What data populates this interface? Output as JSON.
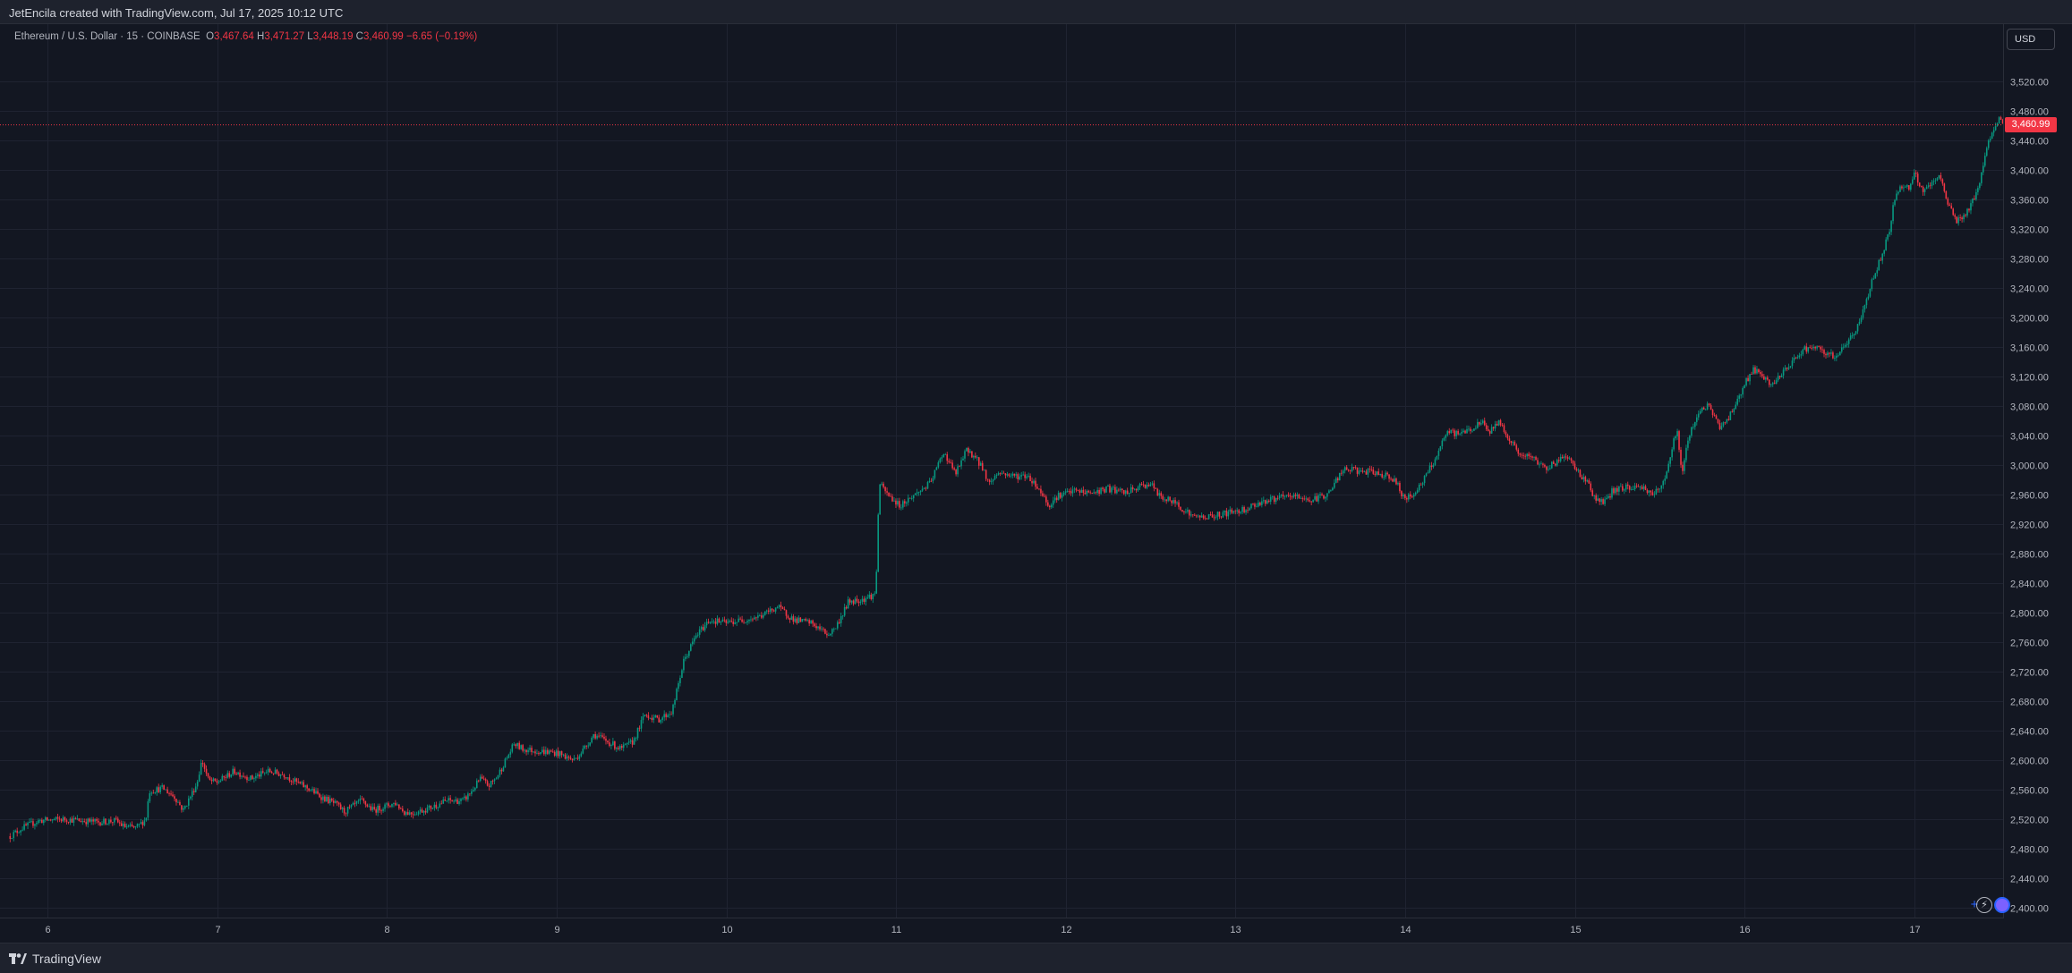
{
  "header": {
    "attribution": "JetEncila created with TradingView.com, Jul 17, 2025 10:12 UTC"
  },
  "legend": {
    "symbol": "Ethereum / U.S. Dollar · 15 · COINBASE",
    "open_label": "O",
    "open": "3,467.64",
    "high_label": "H",
    "high": "3,471.27",
    "low_label": "L",
    "low": "3,448.19",
    "close_label": "C",
    "close": "3,460.99",
    "change": "−6.65 (−0.19%)"
  },
  "currency_button": "USD",
  "last_price_label": "3,460.99",
  "footer": {
    "brand": "TradingView"
  },
  "icons": [
    "tradingview-logo-icon",
    "plus-icon",
    "lightning-icon",
    "avatar-icon"
  ],
  "colors": {
    "background": "#131722",
    "up": "#089981",
    "down": "#f23645",
    "grid": "#1f2331",
    "axis_text": "#b2b5be",
    "last_price": "#f23645"
  },
  "chart_data": {
    "type": "candlestick",
    "series_name": "Ethereum / U.S. Dollar",
    "interval": "15",
    "exchange": "COINBASE",
    "ylim": [
      2400,
      3540
    ],
    "xlim": [
      5.78,
      17.52
    ],
    "y_ticks": [
      2400,
      2440,
      2480,
      2520,
      2560,
      2600,
      2640,
      2680,
      2720,
      2760,
      2800,
      2840,
      2880,
      2920,
      2960,
      3000,
      3040,
      3080,
      3120,
      3160,
      3200,
      3240,
      3280,
      3320,
      3360,
      3400,
      3440,
      3480,
      3520
    ],
    "y_tick_labels": [
      "2,400.00",
      "2,440.00",
      "2,480.00",
      "2,520.00",
      "2,560.00",
      "2,600.00",
      "2,640.00",
      "2,680.00",
      "2,720.00",
      "2,760.00",
      "2,800.00",
      "2,840.00",
      "2,880.00",
      "2,920.00",
      "2,960.00",
      "3,000.00",
      "3,040.00",
      "3,080.00",
      "3,120.00",
      "3,160.00",
      "3,200.00",
      "3,240.00",
      "3,280.00",
      "3,320.00",
      "3,360.00",
      "3,400.00",
      "3,440.00",
      "3,480.00",
      "3,520.00"
    ],
    "x_ticks": [
      6,
      7,
      8,
      9,
      10,
      11,
      12,
      13,
      14,
      15,
      16,
      17
    ],
    "x_tick_labels": [
      "6",
      "7",
      "8",
      "9",
      "10",
      "11",
      "12",
      "13",
      "14",
      "15",
      "16",
      "17"
    ],
    "last_price": 3460.99,
    "close_path": [
      [
        5.78,
        2497
      ],
      [
        5.85,
        2508
      ],
      [
        5.95,
        2518
      ],
      [
        6.1,
        2520
      ],
      [
        6.3,
        2516
      ],
      [
        6.4,
        2518
      ],
      [
        6.45,
        2510
      ],
      [
        6.52,
        2508
      ],
      [
        6.58,
        2520
      ],
      [
        6.6,
        2558
      ],
      [
        6.68,
        2562
      ],
      [
        6.75,
        2550
      ],
      [
        6.8,
        2532
      ],
      [
        6.88,
        2568
      ],
      [
        6.91,
        2600
      ],
      [
        6.95,
        2572
      ],
      [
        7.0,
        2570
      ],
      [
        7.1,
        2585
      ],
      [
        7.2,
        2575
      ],
      [
        7.3,
        2585
      ],
      [
        7.4,
        2580
      ],
      [
        7.45,
        2572
      ],
      [
        7.55,
        2560
      ],
      [
        7.6,
        2552
      ],
      [
        7.7,
        2540
      ],
      [
        7.75,
        2530
      ],
      [
        7.85,
        2545
      ],
      [
        7.92,
        2532
      ],
      [
        8.05,
        2542
      ],
      [
        8.1,
        2530
      ],
      [
        8.15,
        2528
      ],
      [
        8.25,
        2535
      ],
      [
        8.35,
        2545
      ],
      [
        8.45,
        2545
      ],
      [
        8.5,
        2558
      ],
      [
        8.55,
        2575
      ],
      [
        8.6,
        2565
      ],
      [
        8.65,
        2578
      ],
      [
        8.7,
        2600
      ],
      [
        8.75,
        2622
      ],
      [
        8.8,
        2615
      ],
      [
        8.9,
        2612
      ],
      [
        9.0,
        2610
      ],
      [
        9.1,
        2600
      ],
      [
        9.15,
        2612
      ],
      [
        9.22,
        2635
      ],
      [
        9.3,
        2625
      ],
      [
        9.38,
        2615
      ],
      [
        9.45,
        2625
      ],
      [
        9.52,
        2662
      ],
      [
        9.6,
        2655
      ],
      [
        9.68,
        2666
      ],
      [
        9.75,
        2735
      ],
      [
        9.82,
        2768
      ],
      [
        9.9,
        2790
      ],
      [
        10.0,
        2786
      ],
      [
        10.1,
        2790
      ],
      [
        10.2,
        2795
      ],
      [
        10.3,
        2808
      ],
      [
        10.4,
        2790
      ],
      [
        10.5,
        2786
      ],
      [
        10.6,
        2770
      ],
      [
        10.65,
        2782
      ],
      [
        10.72,
        2815
      ],
      [
        10.8,
        2818
      ],
      [
        10.88,
        2825
      ],
      [
        10.9,
        2975
      ],
      [
        10.95,
        2960
      ],
      [
        11.02,
        2945
      ],
      [
        11.1,
        2958
      ],
      [
        11.2,
        2975
      ],
      [
        11.28,
        3018
      ],
      [
        11.35,
        2988
      ],
      [
        11.42,
        3022
      ],
      [
        11.5,
        3000
      ],
      [
        11.55,
        2975
      ],
      [
        11.6,
        2990
      ],
      [
        11.7,
        2985
      ],
      [
        11.78,
        2985
      ],
      [
        11.85,
        2965
      ],
      [
        11.9,
        2945
      ],
      [
        11.95,
        2958
      ],
      [
        12.05,
        2965
      ],
      [
        12.15,
        2962
      ],
      [
        12.25,
        2968
      ],
      [
        12.35,
        2962
      ],
      [
        12.45,
        2972
      ],
      [
        12.5,
        2975
      ],
      [
        12.55,
        2958
      ],
      [
        12.65,
        2948
      ],
      [
        12.75,
        2930
      ],
      [
        12.85,
        2930
      ],
      [
        12.95,
        2935
      ],
      [
        13.05,
        2940
      ],
      [
        13.15,
        2950
      ],
      [
        13.25,
        2955
      ],
      [
        13.35,
        2958
      ],
      [
        13.45,
        2952
      ],
      [
        13.55,
        2962
      ],
      [
        13.6,
        2982
      ],
      [
        13.65,
        2995
      ],
      [
        13.72,
        2992
      ],
      [
        13.8,
        2990
      ],
      [
        13.9,
        2986
      ],
      [
        13.95,
        2975
      ],
      [
        14.0,
        2952
      ],
      [
        14.05,
        2962
      ],
      [
        14.1,
        2976
      ],
      [
        14.18,
        3010
      ],
      [
        14.25,
        3045
      ],
      [
        14.3,
        3042
      ],
      [
        14.4,
        3050
      ],
      [
        14.45,
        3058
      ],
      [
        14.5,
        3045
      ],
      [
        14.55,
        3060
      ],
      [
        14.6,
        3040
      ],
      [
        14.68,
        3012
      ],
      [
        14.75,
        3010
      ],
      [
        14.82,
        2996
      ],
      [
        14.9,
        3005
      ],
      [
        14.95,
        3015
      ],
      [
        15.0,
        2995
      ],
      [
        15.08,
        2975
      ],
      [
        15.12,
        2952
      ],
      [
        15.18,
        2950
      ],
      [
        15.22,
        2965
      ],
      [
        15.3,
        2970
      ],
      [
        15.4,
        2970
      ],
      [
        15.45,
        2962
      ],
      [
        15.5,
        2965
      ],
      [
        15.55,
        3000
      ],
      [
        15.6,
        3050
      ],
      [
        15.63,
        2985
      ],
      [
        15.67,
        3040
      ],
      [
        15.72,
        3068
      ],
      [
        15.78,
        3082
      ],
      [
        15.85,
        3052
      ],
      [
        15.9,
        3062
      ],
      [
        15.95,
        3085
      ],
      [
        16.0,
        3110
      ],
      [
        16.05,
        3130
      ],
      [
        16.1,
        3120
      ],
      [
        16.15,
        3108
      ],
      [
        16.25,
        3130
      ],
      [
        16.3,
        3145
      ],
      [
        16.35,
        3158
      ],
      [
        16.42,
        3158
      ],
      [
        16.5,
        3148
      ],
      [
        16.55,
        3150
      ],
      [
        16.6,
        3165
      ],
      [
        16.65,
        3180
      ],
      [
        16.7,
        3210
      ],
      [
        16.75,
        3250
      ],
      [
        16.8,
        3280
      ],
      [
        16.85,
        3315
      ],
      [
        16.88,
        3360
      ],
      [
        16.93,
        3380
      ],
      [
        16.97,
        3375
      ],
      [
        17.0,
        3395
      ],
      [
        17.05,
        3370
      ],
      [
        17.1,
        3380
      ],
      [
        17.15,
        3390
      ],
      [
        17.2,
        3355
      ],
      [
        17.25,
        3330
      ],
      [
        17.3,
        3340
      ],
      [
        17.35,
        3360
      ],
      [
        17.38,
        3375
      ],
      [
        17.42,
        3430
      ],
      [
        17.45,
        3445
      ],
      [
        17.48,
        3458
      ],
      [
        17.5,
        3468
      ],
      [
        17.52,
        3461
      ]
    ]
  }
}
